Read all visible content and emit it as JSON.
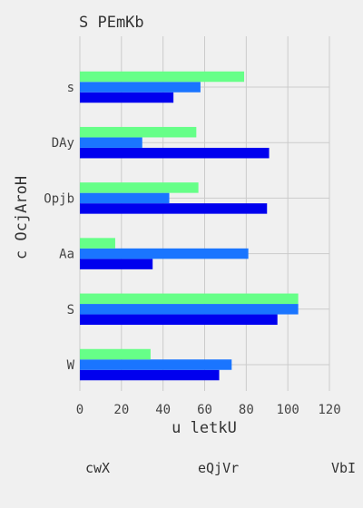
{
  "chart_data": {
    "type": "bar",
    "orientation": "horizontal",
    "title": "S PEmKb",
    "xlabel": "u letkU",
    "ylabel": "c OcjAroH",
    "categories": [
      "W",
      "S",
      "Aa",
      "Opjb",
      "DAy",
      "s"
    ],
    "series": [
      {
        "name": "cwX",
        "color": "#0000ee",
        "values": [
          67,
          95,
          35,
          90,
          91,
          45
        ]
      },
      {
        "name": "eQjVr",
        "color": "#1a75ff",
        "values": [
          73,
          105,
          81,
          43,
          30,
          58
        ]
      },
      {
        "name": "VbI",
        "color": "#66ff88",
        "values": [
          34,
          105,
          17,
          57,
          56,
          79
        ]
      }
    ],
    "xlim": [
      0,
      120
    ],
    "xticks": [
      "0",
      "20",
      "40",
      "60",
      "80",
      "100",
      "120"
    ],
    "grid": true,
    "legend_position": "bottom"
  }
}
